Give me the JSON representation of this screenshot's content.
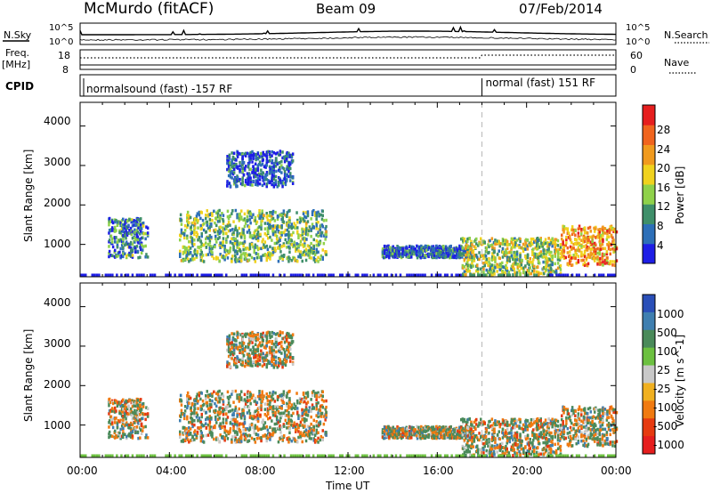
{
  "header": {
    "station": "McMurdo (fitACF)",
    "beam": "Beam 09",
    "date": "07/Feb/2014"
  },
  "top_panels": {
    "nsky_label": "N.Sky",
    "nsearch_label": "N.Search",
    "nsky_ticks": [
      "10^5",
      "10^0"
    ],
    "nsearch_ticks": [
      "10^5",
      "10^0"
    ],
    "freq_label": "Freq.",
    "freq_unit": "[MHz]",
    "freq_ticks": [
      "18",
      "8"
    ],
    "nave_label": "Nave",
    "nave_ticks": [
      "60",
      "0"
    ],
    "cpid_label": "CPID",
    "cpid_segments": [
      {
        "text": "normalsound (fast) -157 RF",
        "start_hour": 0
      },
      {
        "text": "normal (fast) 151 RF",
        "start_hour": 18.0
      }
    ]
  },
  "x_axis": {
    "label": "Time UT",
    "ticks": [
      "00:00",
      "04:00",
      "08:00",
      "12:00",
      "16:00",
      "20:00",
      "00:00"
    ],
    "range_hours": [
      0,
      24
    ],
    "mode_change_hour": 18.0
  },
  "power_panel": {
    "ylabel": "Slant Range [km]",
    "yticks": [
      "1000",
      "2000",
      "3000",
      "4000"
    ],
    "colorbar_label": "Power [dB]",
    "colorbar_ticks": [
      "4",
      "8",
      "12",
      "16",
      "20",
      "24",
      "28"
    ],
    "colors": [
      "#1e1ee6",
      "#2d6fb8",
      "#3f8f6a",
      "#8fd14a",
      "#f0d21e",
      "#f09a1e",
      "#f0641e",
      "#e61e1e"
    ]
  },
  "velocity_panel": {
    "ylabel": "Slant Range [km]",
    "yticks": [
      "1000",
      "2000",
      "3000",
      "4000"
    ],
    "colorbar_label": "Velocity [m s^-1]",
    "colorbar_ticks": [
      "1000",
      "500",
      "100",
      "25",
      "-25",
      "-100",
      "-500",
      "-1000"
    ],
    "colors": [
      "#2a4fb8",
      "#3f7fb0",
      "#4a8a5a",
      "#6cc040",
      "#c8c8c8",
      "#f0b020",
      "#f07a10",
      "#e63a10",
      "#e61e1e"
    ]
  },
  "chart_data": {
    "type": "heatmap",
    "title": "McMurdo (fitACF)  Beam 09  07/Feb/2014",
    "xlabel": "Time UT",
    "ylabel": "Slant Range [km]",
    "x_range_hours": [
      0,
      24
    ],
    "y_range_km": [
      180,
      4600
    ],
    "panels": [
      "Power [dB]",
      "Velocity [m s^-1]"
    ],
    "power_ticks_db": [
      4,
      8,
      12,
      16,
      20,
      24,
      28
    ],
    "velocity_ticks_ms": [
      1000,
      500,
      100,
      25,
      -25,
      -100,
      -500,
      -1000
    ],
    "backscatter_regions": [
      {
        "t_start": 1.2,
        "t_end": 3.0,
        "r_low": 700,
        "r_high": 1700,
        "mean_power_db": 8
      },
      {
        "t_start": 4.4,
        "t_end": 11.0,
        "r_low": 600,
        "r_high": 1900,
        "mean_power_db": 12
      },
      {
        "t_start": 6.5,
        "t_end": 9.5,
        "r_low": 2500,
        "r_high": 3400,
        "mean_power_db": 4
      },
      {
        "t_start": 13.5,
        "t_end": 17.5,
        "r_low": 700,
        "r_high": 1000,
        "mean_power_db": 6
      },
      {
        "t_start": 17.0,
        "t_end": 21.5,
        "r_low": 250,
        "r_high": 1200,
        "mean_power_db": 14
      },
      {
        "t_start": 21.5,
        "t_end": 24.0,
        "r_low": 500,
        "r_high": 1500,
        "mean_power_db": 22
      }
    ]
  }
}
